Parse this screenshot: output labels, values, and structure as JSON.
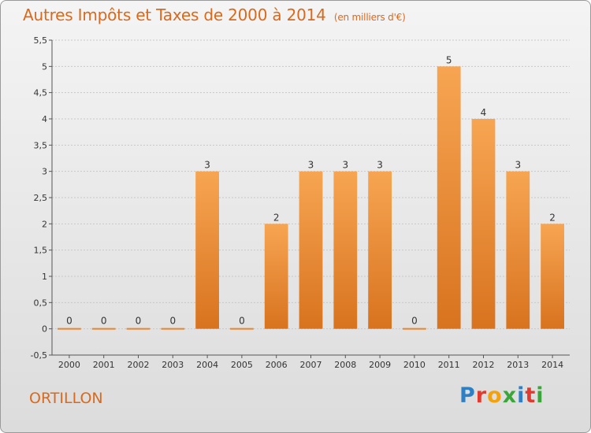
{
  "chart_data": {
    "type": "bar",
    "title": "Autres Impôts et Taxes de 2000 à 2014",
    "subtitle": "(en milliers d'€)",
    "categories": [
      "2000",
      "2001",
      "2002",
      "2003",
      "2004",
      "2005",
      "2006",
      "2007",
      "2008",
      "2009",
      "2010",
      "2011",
      "2012",
      "2013",
      "2014"
    ],
    "values": [
      0,
      0,
      0,
      0,
      3,
      0,
      2,
      3,
      3,
      3,
      0,
      5,
      4,
      3,
      2
    ],
    "ylim": [
      -0.5,
      5.5
    ],
    "yticks": [
      "-0,5",
      "0",
      "0,5",
      "1",
      "1,5",
      "2",
      "2,5",
      "3",
      "3,5",
      "4",
      "4,5",
      "5",
      "5,5"
    ],
    "grid": true,
    "bar_color": "#f0913a"
  },
  "footer": {
    "place": "ORTILLON",
    "brand_letters": [
      "P",
      "r",
      "o",
      "x",
      "i",
      "t",
      "i"
    ],
    "brand_colors": [
      "#2f7fc4",
      "#e23a2e",
      "#f2a20f",
      "#3aa63a",
      "#2f7fc4",
      "#e23a2e",
      "#3aa63a"
    ]
  }
}
